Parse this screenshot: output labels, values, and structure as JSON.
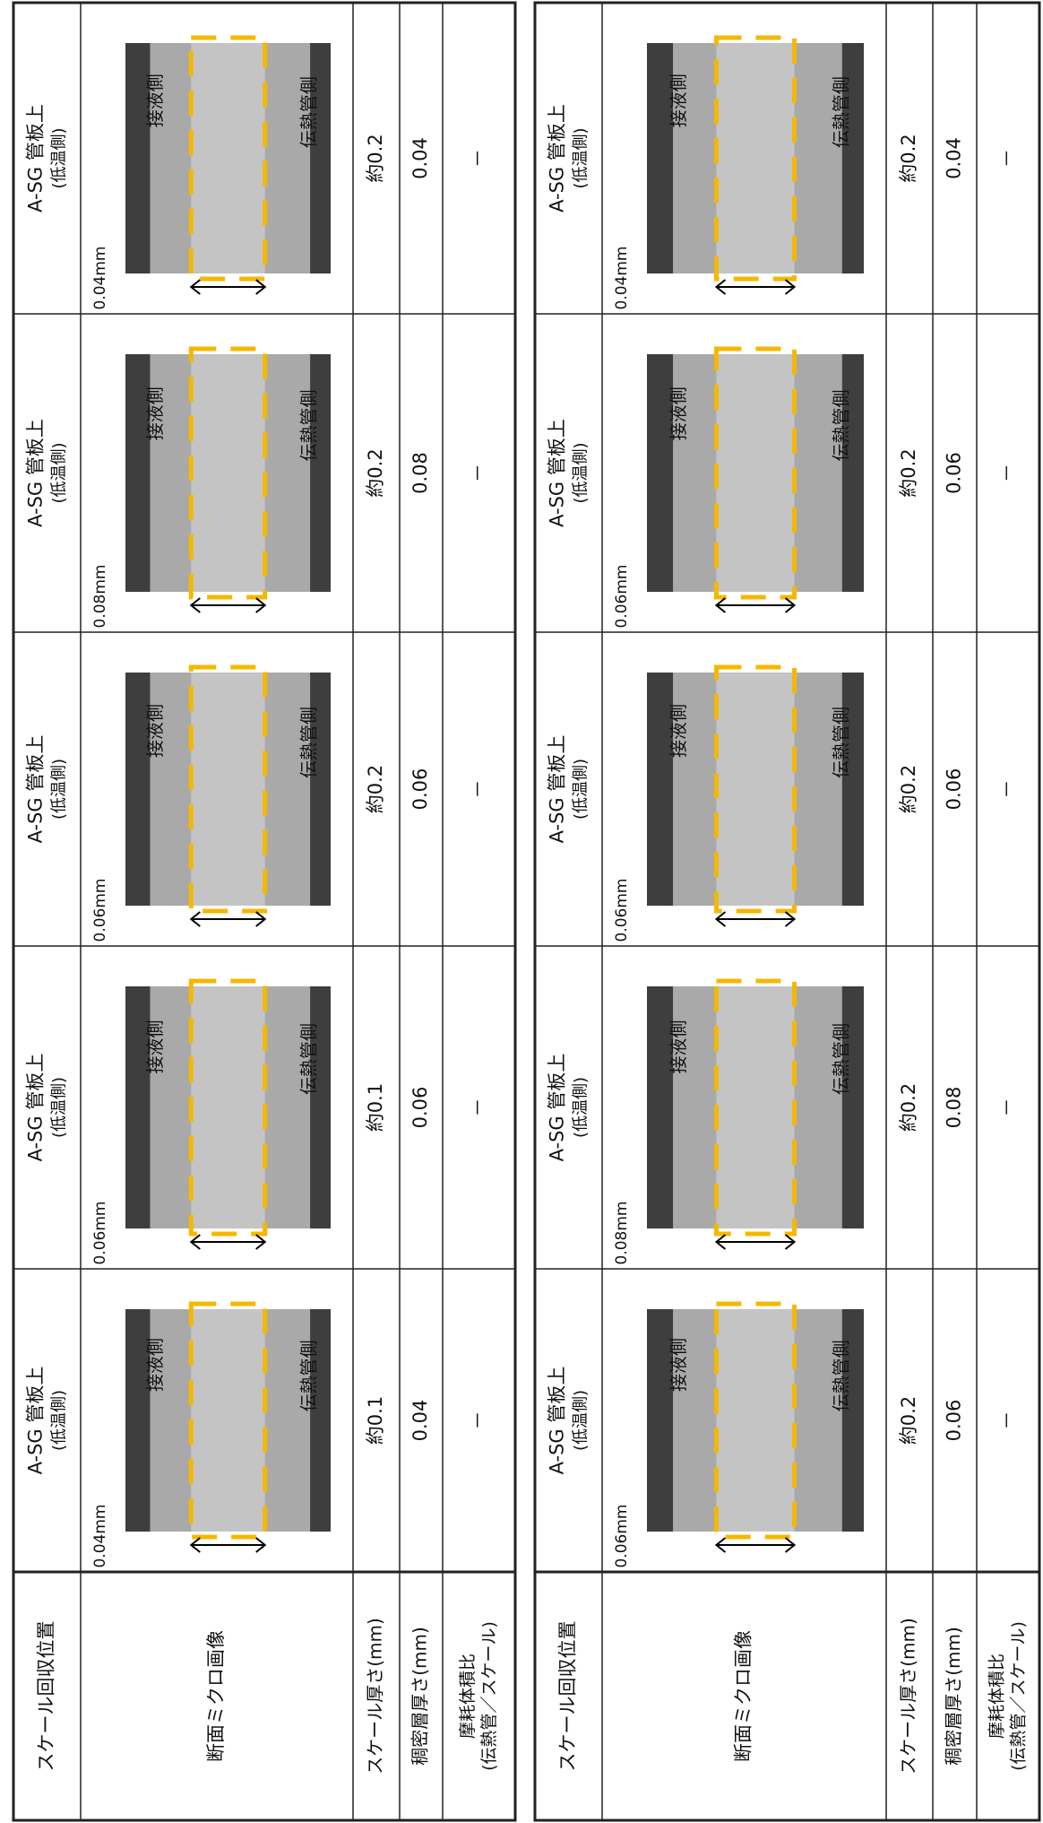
{
  "tables": [
    {
      "header": {
        "location": "スケール回収位置",
        "image": "断面ミクロ画像",
        "thickness": "スケール厚さ(mm)",
        "dense": "稠密層厚さ(mm)",
        "ratio": [
          "摩耗体積比",
          "(伝熱管／スケール)"
        ]
      },
      "samples": [
        {
          "location": [
            "A-SG 管板上",
            "(低温側)"
          ],
          "image_labels": [
            "接液側",
            "伝熱管側"
          ],
          "dimension": "0.04mm",
          "thickness": "約0.1",
          "dense": "0.04",
          "ratio": "－"
        },
        {
          "location": [
            "A-SG 管板上",
            "(低温側)"
          ],
          "image_labels": [
            "接液側",
            "伝熱管側"
          ],
          "dimension": "0.06mm",
          "thickness": "約0.1",
          "dense": "0.06",
          "ratio": "－"
        },
        {
          "location": [
            "A-SG 管板上",
            "(低温側)"
          ],
          "image_labels": [
            "接液側",
            "伝熱管側"
          ],
          "dimension": "0.06mm",
          "thickness": "約0.2",
          "dense": "0.06",
          "ratio": "－"
        },
        {
          "location": [
            "A-SG 管板上",
            "(低温側)"
          ],
          "image_labels": [
            "接液側",
            "伝熱管側"
          ],
          "dimension": "0.08mm",
          "thickness": "約0.2",
          "dense": "0.08",
          "ratio": "－"
        },
        {
          "location": [
            "A-SG 管板上",
            "(低温側)"
          ],
          "image_labels": [
            "接液側",
            "伝熱管側"
          ],
          "dimension": "0.04mm",
          "thickness": "約0.2",
          "dense": "0.04",
          "ratio": "－"
        }
      ]
    },
    {
      "header": {
        "location": "スケール回収位置",
        "image": "断面ミクロ画像",
        "thickness": "スケール厚さ(mm)",
        "dense": "稠密層厚さ(mm)",
        "ratio": [
          "摩耗体積比",
          "(伝熱管／スケール)"
        ]
      },
      "samples": [
        {
          "location": [
            "A-SG 管板上",
            "(低温側)"
          ],
          "image_labels": [
            "接液側",
            "伝熱管側"
          ],
          "dimension": "0.06mm",
          "thickness": "約0.2",
          "dense": "0.06",
          "ratio": "－"
        },
        {
          "location": [
            "A-SG 管板上",
            "(低温側)"
          ],
          "image_labels": [
            "接液側",
            "伝熱管側"
          ],
          "dimension": "0.08mm",
          "thickness": "約0.2",
          "dense": "0.08",
          "ratio": "－"
        },
        {
          "location": [
            "A-SG 管板上",
            "(低温側)"
          ],
          "image_labels": [
            "接液側",
            "伝熱管側"
          ],
          "dimension": "0.06mm",
          "thickness": "約0.2",
          "dense": "0.06",
          "ratio": "－"
        },
        {
          "location": [
            "A-SG 管板上",
            "(低温側)"
          ],
          "image_labels": [
            "接液側",
            "伝熱管側"
          ],
          "dimension": "0.06mm",
          "thickness": "約0.2",
          "dense": "0.06",
          "ratio": "－"
        },
        {
          "location": [
            "A-SG 管板上",
            "(低温側)"
          ],
          "image_labels": [
            "接液側",
            "伝熱管側"
          ],
          "dimension": "0.04mm",
          "thickness": "約0.2",
          "dense": "0.04",
          "ratio": "－"
        }
      ]
    }
  ]
}
